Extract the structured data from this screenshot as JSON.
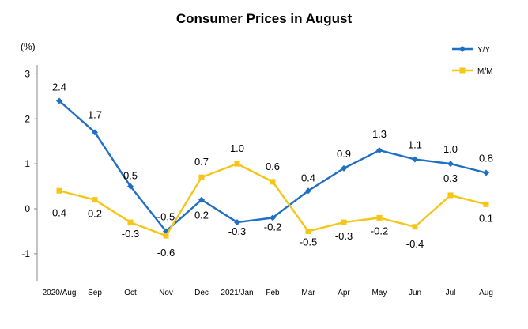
{
  "chart_data": {
    "type": "line",
    "title": "Consumer Prices in August",
    "unit_label": "(%)",
    "categories": [
      "2020/Aug",
      "Sep",
      "Oct",
      "Nov",
      "Dec",
      "2021/Jan",
      "Feb",
      "Mar",
      "Apr",
      "May",
      "Jun",
      "Jul",
      "Aug"
    ],
    "series": [
      {
        "name": "Y/Y",
        "color": "#1f6fc5",
        "marker": "diamond",
        "values": [
          2.4,
          1.7,
          0.5,
          -0.5,
          0.2,
          -0.3,
          -0.2,
          0.4,
          0.9,
          1.3,
          1.1,
          1.0,
          0.8
        ],
        "labels": [
          "2.4",
          "1.7",
          "0.5",
          "-0.5",
          "0.2",
          "-0.3",
          "-0.2",
          "0.4",
          "0.9",
          "1.3",
          "1.1",
          "1.0",
          "0.8"
        ]
      },
      {
        "name": "M/M",
        "color": "#f5c518",
        "marker": "square",
        "values": [
          0.4,
          0.2,
          -0.3,
          -0.6,
          0.7,
          1.0,
          0.6,
          -0.5,
          -0.3,
          -0.2,
          -0.4,
          0.3,
          0.1
        ],
        "labels": [
          "0.4",
          "0.2",
          "-0.3",
          "-0.6",
          "0.7",
          "1.0",
          "0.6",
          "-0.5",
          "-0.3",
          "-0.2",
          "-0.4",
          "0.3",
          "0.1"
        ]
      }
    ],
    "y_ticks": [
      "3",
      "2",
      "1",
      "0",
      "-1"
    ],
    "ylim": [
      -1.6,
      3.2
    ],
    "grid": false,
    "legend_position": "top-right"
  }
}
